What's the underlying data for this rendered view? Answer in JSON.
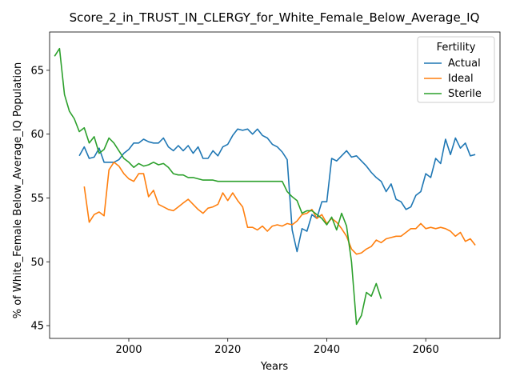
{
  "chart_data": {
    "type": "line",
    "title": "Score_2_in_TRUST_IN_CLERGY_for_White_Female_Below_Average_IQ",
    "xlabel": "Years",
    "ylabel": "% of White_Female Below_Average_IQ Population",
    "xlim": [
      1984,
      2075
    ],
    "ylim": [
      44,
      68
    ],
    "xticks": [
      2000,
      2020,
      2040,
      2060
    ],
    "yticks": [
      45,
      50,
      55,
      60,
      65
    ],
    "grid": false,
    "legend": {
      "title": "Fertility",
      "placement": "top-right"
    },
    "series": [
      {
        "name": "Actual",
        "color": "#1f77b4",
        "x": [
          1990,
          1991,
          1992,
          1993,
          1994,
          1995,
          1996,
          1997,
          1998,
          1999,
          2000,
          2001,
          2002,
          2003,
          2004,
          2005,
          2006,
          2007,
          2008,
          2009,
          2010,
          2011,
          2012,
          2013,
          2014,
          2015,
          2016,
          2017,
          2018,
          2019,
          2020,
          2021,
          2022,
          2023,
          2024,
          2025,
          2026,
          2027,
          2028,
          2029,
          2030,
          2031,
          2032,
          2033,
          2034,
          2035,
          2036,
          2037,
          2038,
          2039,
          2040,
          2041,
          2042,
          2043,
          2044,
          2045,
          2046,
          2047,
          2048,
          2049,
          2050,
          2051,
          2052,
          2053,
          2054,
          2055,
          2056,
          2057,
          2058,
          2059,
          2060,
          2061,
          2062,
          2063,
          2064,
          2065,
          2066,
          2067,
          2068,
          2069,
          2070
        ],
        "values": [
          58.3,
          59.0,
          58.1,
          58.2,
          58.9,
          57.8,
          57.8,
          57.8,
          58.0,
          58.5,
          58.8,
          59.3,
          59.3,
          59.6,
          59.4,
          59.3,
          59.3,
          59.7,
          59.0,
          58.7,
          59.1,
          58.7,
          59.1,
          58.5,
          59.0,
          58.1,
          58.1,
          58.7,
          58.3,
          59.0,
          59.2,
          59.9,
          60.4,
          60.3,
          60.4,
          60.0,
          60.4,
          59.9,
          59.7,
          59.2,
          59.0,
          58.6,
          58.0,
          52.5,
          50.8,
          52.6,
          52.4,
          53.7,
          53.4,
          54.7,
          54.7,
          58.1,
          57.9,
          58.3,
          58.7,
          58.2,
          58.3,
          57.9,
          57.5,
          57.0,
          56.6,
          56.3,
          55.5,
          56.1,
          54.9,
          54.7,
          54.1,
          54.3,
          55.2,
          55.5,
          56.9,
          56.6,
          58.1,
          57.7,
          59.6,
          58.4,
          59.7,
          58.9,
          59.3,
          58.3,
          58.4
        ]
      },
      {
        "name": "Ideal",
        "color": "#ff7f0e",
        "x": [
          1991,
          1992,
          1993,
          1994,
          1995,
          1996,
          1997,
          1998,
          1999,
          2000,
          2001,
          2002,
          2003,
          2004,
          2005,
          2006,
          2007,
          2008,
          2009,
          2010,
          2011,
          2012,
          2013,
          2014,
          2015,
          2016,
          2017,
          2018,
          2019,
          2020,
          2021,
          2022,
          2023,
          2024,
          2025,
          2026,
          2027,
          2028,
          2029,
          2030,
          2031,
          2032,
          2033,
          2034,
          2035,
          2036,
          2037,
          2038,
          2039,
          2040,
          2041,
          2042,
          2043,
          2044,
          2045,
          2046,
          2047,
          2048,
          2049,
          2050,
          2051,
          2052,
          2053,
          2054,
          2055,
          2056,
          2057,
          2058,
          2059,
          2060,
          2061,
          2062,
          2063,
          2064,
          2065,
          2066,
          2067,
          2068,
          2069,
          2070
        ],
        "values": [
          55.9,
          53.1,
          53.7,
          53.9,
          53.6,
          57.2,
          57.8,
          57.5,
          56.9,
          56.5,
          56.3,
          56.9,
          56.9,
          55.1,
          55.6,
          54.5,
          54.3,
          54.1,
          54.0,
          54.3,
          54.6,
          54.9,
          54.5,
          54.1,
          53.8,
          54.2,
          54.3,
          54.5,
          55.4,
          54.8,
          55.4,
          54.8,
          54.3,
          52.7,
          52.7,
          52.5,
          52.8,
          52.4,
          52.8,
          52.9,
          52.8,
          53.0,
          52.9,
          53.2,
          53.7,
          53.8,
          54.1,
          53.4,
          53.7,
          53.0,
          53.4,
          53.1,
          52.6,
          52.0,
          51.0,
          50.6,
          50.7,
          51.0,
          51.2,
          51.7,
          51.5,
          51.8,
          51.9,
          52.0,
          52.0,
          52.3,
          52.6,
          52.6,
          53.0,
          52.6,
          52.7,
          52.6,
          52.7,
          52.6,
          52.4,
          52.0,
          52.3,
          51.6,
          51.8,
          51.3
        ]
      },
      {
        "name": "Sterile",
        "color": "#2ca02c",
        "x": [
          1985,
          1986,
          1987,
          1988,
          1989,
          1990,
          1991,
          1992,
          1993,
          1994,
          1995,
          1996,
          1997,
          1998,
          1999,
          2000,
          2001,
          2002,
          2003,
          2004,
          2005,
          2006,
          2007,
          2008,
          2009,
          2010,
          2011,
          2012,
          2013,
          2014,
          2015,
          2016,
          2017,
          2018,
          2019,
          2020,
          2021,
          2022,
          2023,
          2024,
          2025,
          2026,
          2027,
          2028,
          2029,
          2030,
          2031,
          2032,
          2033,
          2034,
          2035,
          2036,
          2037,
          2038,
          2039,
          2040,
          2041,
          2042,
          2043,
          2044,
          2045,
          2046,
          2047,
          2048,
          2049,
          2050,
          2051
        ],
        "values": [
          66.1,
          66.7,
          63.1,
          61.8,
          61.2,
          60.2,
          60.5,
          59.3,
          59.8,
          58.5,
          58.8,
          59.7,
          59.3,
          58.7,
          58.1,
          57.8,
          57.4,
          57.7,
          57.5,
          57.6,
          57.8,
          57.6,
          57.7,
          57.4,
          56.9,
          56.8,
          56.8,
          56.6,
          56.6,
          56.5,
          56.4,
          56.4,
          56.4,
          56.3,
          56.3,
          56.3,
          56.3,
          56.3,
          56.3,
          56.3,
          56.3,
          56.3,
          56.3,
          56.3,
          56.3,
          56.3,
          56.3,
          55.5,
          55.1,
          54.8,
          53.8,
          54.0,
          54.0,
          53.7,
          53.4,
          52.9,
          53.5,
          52.5,
          53.8,
          52.8,
          50.0,
          45.1,
          45.8,
          47.6,
          47.3,
          48.3,
          47.1
        ]
      }
    ]
  }
}
